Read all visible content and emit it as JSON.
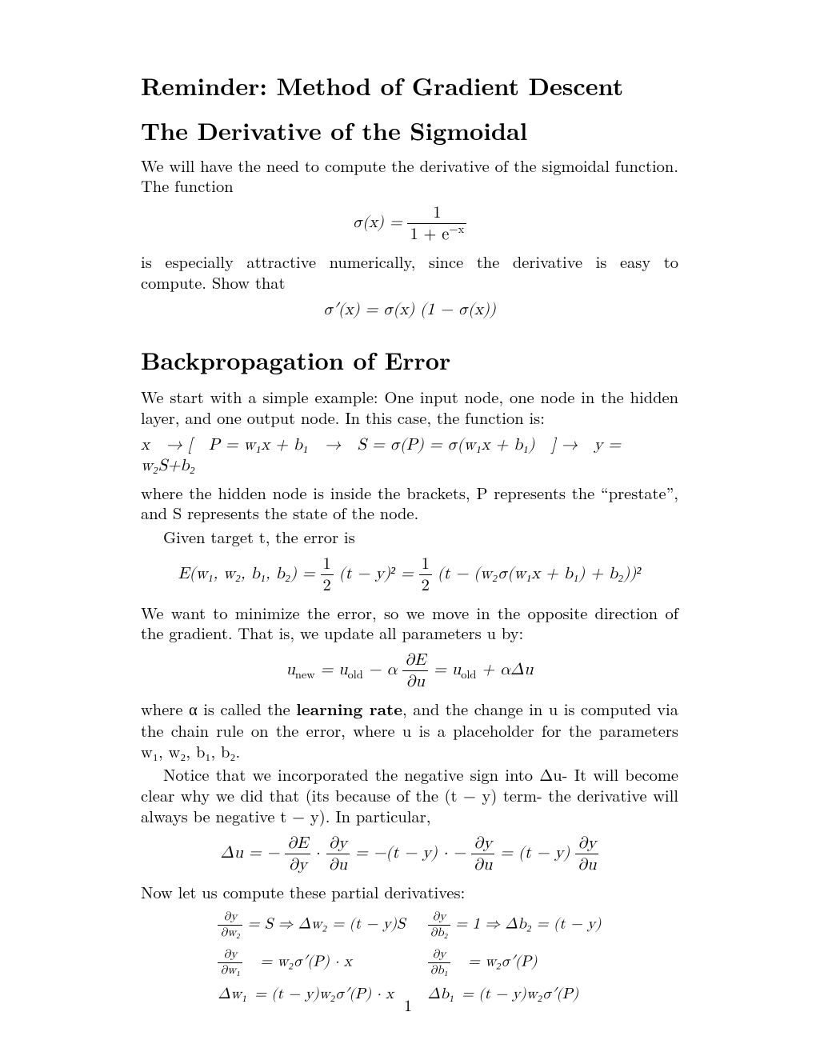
{
  "title": "Reminder: Method of Gradient Descent",
  "subtitle": "The Derivative of the Sigmoidal",
  "section2": "Backpropagation of Error",
  "p1a": "We will have the need to compute the derivative of the sigmoidal function. The function",
  "eq1_lhs": "σ(x) = ",
  "eq1_num": "1",
  "eq1_den": "1 + e",
  "eq1_exp": "−x",
  "p1b": "is especially attractive numerically, since the derivative is easy to compute. Show that",
  "eq2": "σ′(x) = σ(x) (1 − σ(x))",
  "p2a": "We start with a simple example: One input node, one node in the hidden layer, and one output node. In this case, the function is:",
  "eq3": "x → [ P = w₁x + b₁ → S = σ(P) = σ(w₁x + b₁) ] → y = w₂S+b₂",
  "p2b": "where the hidden node is inside the brackets, P represents the “prestate”, and S represents the state of the node.",
  "p2c": "Given target t, the error is",
  "eq4_pre": "E(w₁, w₂, b₁, b₂) = ",
  "eq4_half1_num": "1",
  "eq4_half1_den": "2",
  "eq4_mid1": "(t − y)² = ",
  "eq4_half2_num": "1",
  "eq4_half2_den": "2",
  "eq4_post": "(t − (w₂σ(w₁x + b₁) + b₂))²",
  "p2d": "We want to minimize the error, so we move in the opposite direction of the gradient. That is, we update all parameters u by:",
  "eq5_pre": "u",
  "eq5_new": "new",
  "eq5_mid1": " = u",
  "eq5_old": "old",
  "eq5_mid2": " − α",
  "eq5_frac_num": "∂E",
  "eq5_frac_den": "∂u",
  "eq5_mid3": " = u",
  "eq5_post": " + αΔu",
  "p2e_a": "where α is called the ",
  "p2e_b": "learning rate",
  "p2e_c": ", and the change in u is computed via the chain rule on the error, where u is a placeholder for the parameters w₁, w₂, b₁, b₂.",
  "p2f": "Notice that we incorporated the negative sign into Δu- It will become clear why we did that (its because of the (t − y) term- the derivative will always be negative t − y). In particular,",
  "eq6_pre": "Δu = −",
  "eq6_f1n": "∂E",
  "eq6_f1d": "∂y",
  "eq6_dot1": " · ",
  "eq6_f2n": "∂y",
  "eq6_f2d": "∂u",
  "eq6_mid": " = −(t − y) · −",
  "eq6_f3n": "∂y",
  "eq6_f3d": "∂u",
  "eq6_mid2": " = (t − y)",
  "eq6_f4n": "∂y",
  "eq6_f4d": "∂u",
  "p2g": "Now let us compute these partial derivatives:",
  "tbl": {
    "r1c1a_n": "∂y",
    "r1c1a_d": "∂w₂",
    "r1c1b": " = S ⇒ Δw₂ = (t − y)S",
    "r1c2a_n": "∂y",
    "r1c2a_d": "∂b₂",
    "r1c2b": " = 1 ⇒ Δb₂ = (t − y)",
    "r2c1a_n": "∂y",
    "r2c1a_d": "∂w₁",
    "r2c1b": "  = w₂σ′(P) · x",
    "r2c2a_n": "∂y",
    "r2c2a_d": "∂b₁",
    "r2c2b": "  = w₂σ′(P)",
    "r3c1": "Δw₁ = (t − y)w₂σ′(P) · x",
    "r3c2": "Δb₁ = (t − y)w₂σ′(P)"
  },
  "pagenum": "1",
  "colors": {
    "text": "#000000",
    "bg": "#ffffff"
  }
}
